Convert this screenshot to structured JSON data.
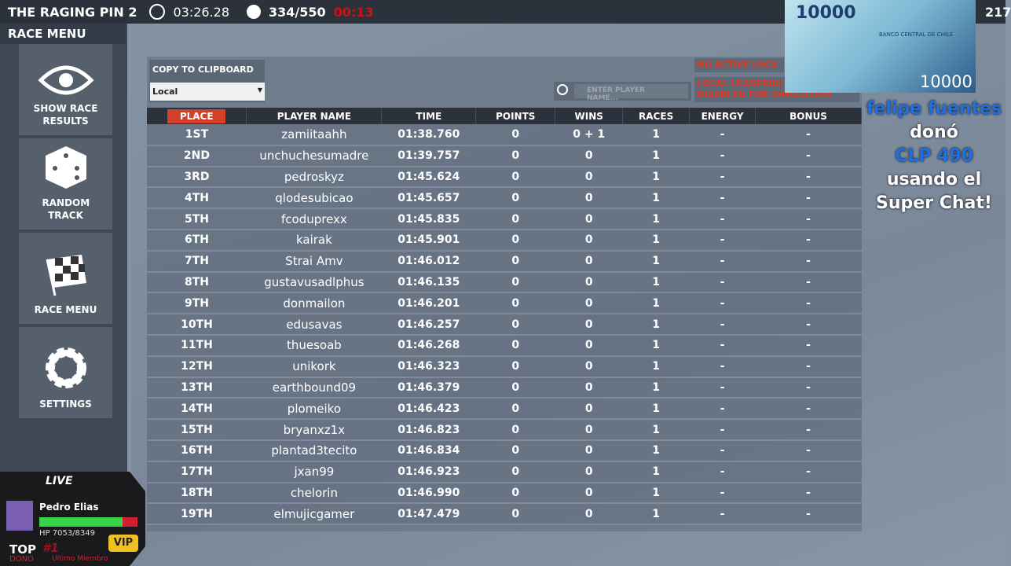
{
  "topbar": {
    "title": "THE RAGING PIN 2",
    "timer": "03:26.28",
    "count": "334/550",
    "countdown": "00:13",
    "right_num": "217"
  },
  "sidebar": {
    "title": "RACE MENU",
    "buttons": [
      {
        "label": "SHOW RACE RESULTS",
        "icon": "eye-icon"
      },
      {
        "label": "RANDOM TRACK",
        "icon": "dice-icon"
      },
      {
        "label": "RACE MENU",
        "icon": "checkered-flag-icon"
      },
      {
        "label": "SETTINGS",
        "icon": "gear-icon"
      }
    ]
  },
  "toolbar": {
    "copy_label": "COPY TO CLIPBOARD",
    "select_value": "Local",
    "search_placeholder": "ENTER PLAYER NAME...",
    "warning1": "NO ACTIVE LOCA",
    "warning2": "LOCAL LEADERBO",
    "warning3": "DISABLED  FOR SIMULATION"
  },
  "table": {
    "headers": [
      "PLACE",
      "PLAYER NAME",
      "TIME",
      "POINTS",
      "WINS",
      "RACES",
      "ENERGY",
      "BONUS"
    ],
    "rows": [
      [
        "1ST",
        "zamiitaahh",
        "01:38.760",
        "0",
        "0 + 1",
        "1",
        "-",
        "-"
      ],
      [
        "2ND",
        "unchuchesumadre",
        "01:39.757",
        "0",
        "0",
        "1",
        "-",
        "-"
      ],
      [
        "3RD",
        "pedroskyz",
        "01:45.624",
        "0",
        "0",
        "1",
        "-",
        "-"
      ],
      [
        "4TH",
        "qlodesubicao",
        "01:45.657",
        "0",
        "0",
        "1",
        "-",
        "-"
      ],
      [
        "5TH",
        "fcoduprexx",
        "01:45.835",
        "0",
        "0",
        "1",
        "-",
        "-"
      ],
      [
        "6TH",
        "kairak",
        "01:45.901",
        "0",
        "0",
        "1",
        "-",
        "-"
      ],
      [
        "7TH",
        "Strai Amv",
        "01:46.012",
        "0",
        "0",
        "1",
        "-",
        "-"
      ],
      [
        "8TH",
        "gustavusadlphus",
        "01:46.135",
        "0",
        "0",
        "1",
        "-",
        "-"
      ],
      [
        "9TH",
        "donmailon",
        "01:46.201",
        "0",
        "0",
        "1",
        "-",
        "-"
      ],
      [
        "10TH",
        "edusavas",
        "01:46.257",
        "0",
        "0",
        "1",
        "-",
        "-"
      ],
      [
        "11TH",
        "thuesoab",
        "01:46.268",
        "0",
        "0",
        "1",
        "-",
        "-"
      ],
      [
        "12TH",
        "unikork",
        "01:46.323",
        "0",
        "0",
        "1",
        "-",
        "-"
      ],
      [
        "13TH",
        "earthbound09",
        "01:46.379",
        "0",
        "0",
        "1",
        "-",
        "-"
      ],
      [
        "14TH",
        "plomeiko",
        "01:46.423",
        "0",
        "0",
        "1",
        "-",
        "-"
      ],
      [
        "15TH",
        "bryanxz1x",
        "01:46.823",
        "0",
        "0",
        "1",
        "-",
        "-"
      ],
      [
        "16TH",
        "plantad3tecito",
        "01:46.834",
        "0",
        "0",
        "1",
        "-",
        "-"
      ],
      [
        "17TH",
        "jxan99",
        "01:46.923",
        "0",
        "0",
        "1",
        "-",
        "-"
      ],
      [
        "18TH",
        "chelorin",
        "01:46.990",
        "0",
        "0",
        "1",
        "-",
        "-"
      ],
      [
        "19TH",
        "elmujicgamer",
        "01:47.479",
        "0",
        "0",
        "1",
        "-",
        "-"
      ]
    ]
  },
  "superchat": {
    "name": "felipe fuentes",
    "donated": "donó",
    "amount": "CLP 490",
    "rest": "usando el Super Chat!",
    "banknote": "10000",
    "bank": "BANCO CENTRAL DE CHILE"
  },
  "hud": {
    "live": "LIVE",
    "user": "Pedro Elias",
    "hp": "HP 7053/8349",
    "hp_fraction": 0.845,
    "badge": "VIP",
    "top": "TOP",
    "dono": "DONO",
    "rank": "#1",
    "member": "Ultimo Miembro"
  }
}
